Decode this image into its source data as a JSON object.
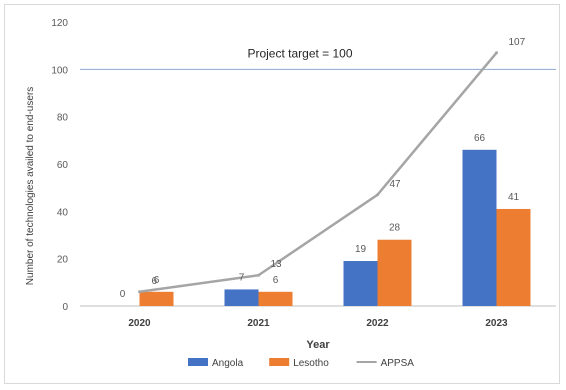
{
  "chart_data": {
    "type": "bar",
    "categories": [
      "2020",
      "2021",
      "2022",
      "2023"
    ],
    "xlabel": "Year",
    "ylabel": "Number of technologies availed to end-users",
    "ylim": [
      0,
      120
    ],
    "yticks": [
      0,
      20,
      40,
      60,
      80,
      100,
      120
    ],
    "grid": false,
    "legend_position": "bottom",
    "series": [
      {
        "name": "Angola",
        "type": "bar",
        "color": "#4472C4",
        "values": [
          0,
          7,
          19,
          66
        ],
        "labels": [
          "0",
          "7",
          "19",
          "66"
        ]
      },
      {
        "name": "Lesotho",
        "type": "bar",
        "color": "#ED7D31",
        "values": [
          6,
          6,
          28,
          41
        ],
        "labels": [
          "6",
          "6",
          "28",
          "41"
        ]
      },
      {
        "name": "APPSA",
        "type": "line",
        "color": "#A5A5A5",
        "values": [
          6,
          13,
          47,
          107
        ],
        "labels": [
          "6",
          "13",
          "47",
          "107"
        ]
      }
    ],
    "reference_line": {
      "value": 100,
      "label": "Project target = 100",
      "color": "#8EA9C9"
    }
  }
}
